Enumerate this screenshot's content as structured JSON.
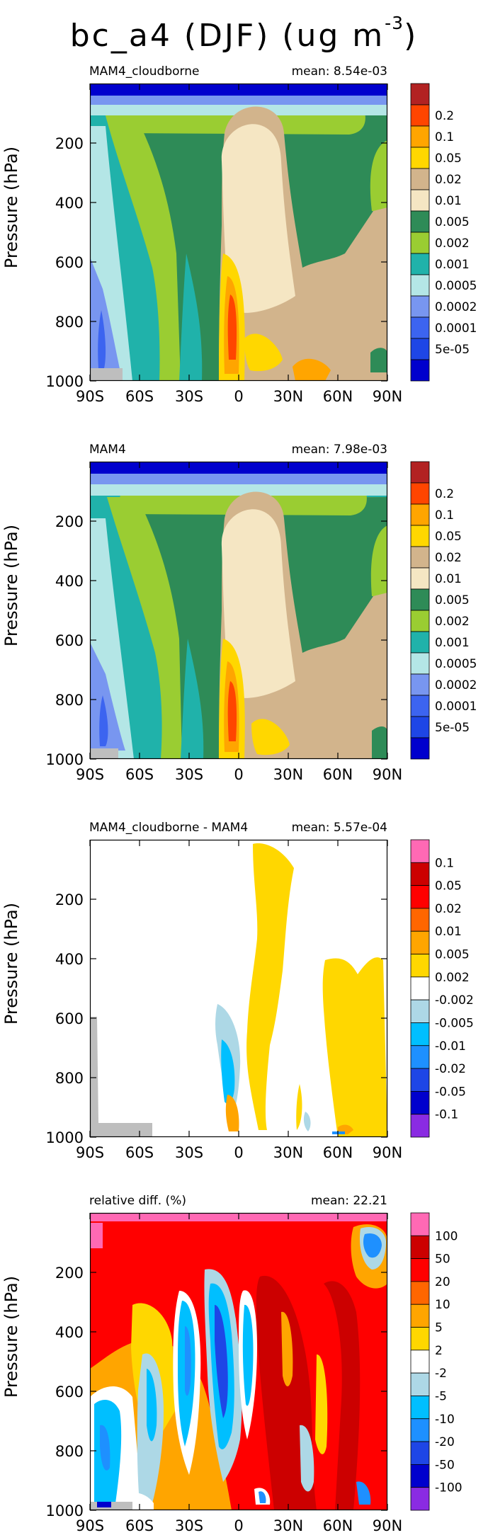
{
  "figure": {
    "title_main": "bc_a4 (DJF) (ug m",
    "title_exp": "-3",
    "title_close": ")"
  },
  "colors": {
    "abs_levels": [
      "#0000CD",
      "#1E46E6",
      "#3C64F0",
      "#7896F0",
      "#B4E6E6",
      "#20B2AA",
      "#9ACD32",
      "#2E8B57",
      "#F5E6C3",
      "#D2B48C",
      "#FFD700",
      "#FFA500",
      "#FF4500",
      "#B22222"
    ],
    "diff_levels": [
      "#8A2BE2",
      "#0000CD",
      "#1E46E6",
      "#1E90FF",
      "#00BFFF",
      "#ADD8E6",
      "#FFFFFF",
      "#FFD700",
      "#FFA500",
      "#FF6600",
      "#FF0000",
      "#CC0000",
      "#FF69B4"
    ],
    "missing": "#BEBEBE"
  },
  "chart_data": [
    {
      "type": "contour",
      "variable": "bc_a4",
      "season": "DJF",
      "units": "ug m-3",
      "title": "MAM4_cloudborne",
      "mean_text": "mean: 8.54e-03",
      "mean": 0.00854,
      "xlabel": "",
      "ylabel": "Pressure (hPa)",
      "xlim": [
        -90,
        90
      ],
      "ylim": [
        1000,
        0
      ],
      "xticks": [
        "90S",
        "60S",
        "30S",
        "0",
        "30N",
        "60N",
        "90N"
      ],
      "yticks": [
        "200",
        "400",
        "600",
        "800",
        "1000"
      ],
      "colorbar_levels": [
        "0.2",
        "0.1",
        "0.05",
        "0.02",
        "0.01",
        "0.005",
        "0.002",
        "0.001",
        "0.0005",
        "0.0002",
        "0.0001",
        "5e-05"
      ],
      "palette": "abs"
    },
    {
      "type": "contour",
      "variable": "bc_a4",
      "season": "DJF",
      "units": "ug m-3",
      "title": "MAM4",
      "mean_text": "mean: 7.98e-03",
      "mean": 0.00798,
      "xlabel": "",
      "ylabel": "Pressure (hPa)",
      "xlim": [
        -90,
        90
      ],
      "ylim": [
        1000,
        0
      ],
      "xticks": [
        "90S",
        "60S",
        "30S",
        "0",
        "30N",
        "60N",
        "90N"
      ],
      "yticks": [
        "200",
        "400",
        "600",
        "800",
        "1000"
      ],
      "colorbar_levels": [
        "0.2",
        "0.1",
        "0.05",
        "0.02",
        "0.01",
        "0.005",
        "0.002",
        "0.001",
        "0.0005",
        "0.0002",
        "0.0001",
        "5e-05"
      ],
      "palette": "abs"
    },
    {
      "type": "contour",
      "variable": "bc_a4",
      "season": "DJF",
      "title": "MAM4_cloudborne - MAM4",
      "mean_text": "mean: 5.57e-04",
      "mean": 0.000557,
      "xlabel": "",
      "ylabel": "Pressure (hPa)",
      "xlim": [
        -90,
        90
      ],
      "ylim": [
        1000,
        0
      ],
      "xticks": [
        "90S",
        "60S",
        "30S",
        "0",
        "30N",
        "60N",
        "90N"
      ],
      "yticks": [
        "200",
        "400",
        "600",
        "800",
        "1000"
      ],
      "colorbar_levels": [
        "0.1",
        "0.05",
        "0.02",
        "0.01",
        "0.005",
        "0.002",
        "-0.002",
        "-0.005",
        "-0.01",
        "-0.02",
        "-0.05",
        "-0.1"
      ],
      "palette": "diff"
    },
    {
      "type": "contour",
      "variable": "bc_a4",
      "season": "DJF",
      "title": "relative diff. (%)",
      "mean_text": "mean: 22.21",
      "mean": 22.21,
      "xlabel": "",
      "ylabel": "Pressure (hPa)",
      "xlim": [
        -90,
        90
      ],
      "ylim": [
        1000,
        0
      ],
      "xticks": [
        "90S",
        "60S",
        "30S",
        "0",
        "30N",
        "60N",
        "90N"
      ],
      "yticks": [
        "200",
        "400",
        "600",
        "800",
        "1000"
      ],
      "colorbar_levels": [
        "100",
        "50",
        "20",
        "10",
        "5",
        "2",
        "-2",
        "-5",
        "-10",
        "-20",
        "-50",
        "-100"
      ],
      "palette": "diff"
    }
  ]
}
